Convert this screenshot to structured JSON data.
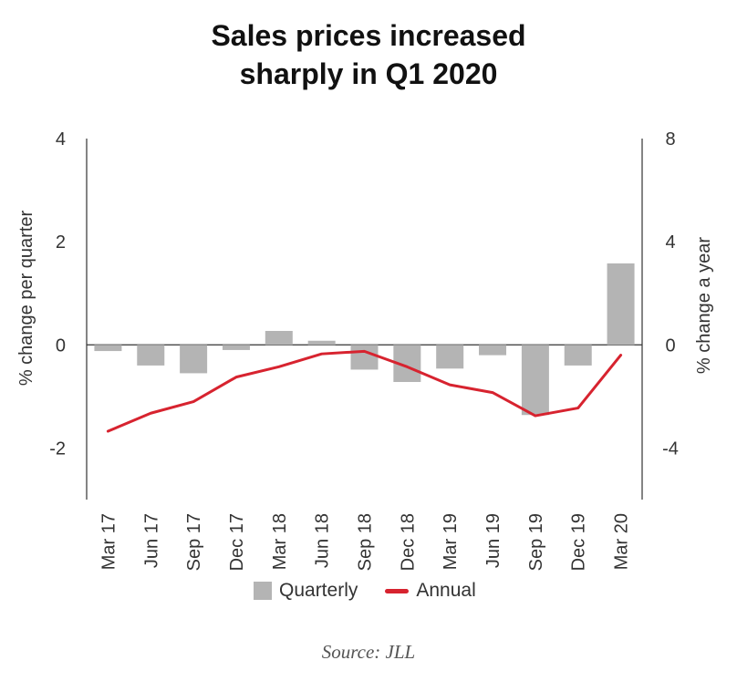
{
  "title_lines": [
    "Sales prices increased",
    "sharply in Q1 2020"
  ],
  "source": "Source: JLL",
  "chart_data": {
    "type": "bar",
    "title": "Sales prices increased sharply in Q1 2020",
    "categories": [
      "Mar 17",
      "Jun 17",
      "Sep 17",
      "Dec 17",
      "Mar 18",
      "Jun 18",
      "Sep 18",
      "Dec 18",
      "Mar 19",
      "Jun 19",
      "Sep 19",
      "Dec 19",
      "Mar 20"
    ],
    "series": [
      {
        "name": "Quarterly",
        "type": "bar",
        "axis": "left",
        "color": "#b4b4b4",
        "values": [
          -0.12,
          -0.4,
          -0.55,
          -0.1,
          0.27,
          0.08,
          -0.48,
          -0.72,
          -0.46,
          -0.2,
          -1.36,
          -0.4,
          1.58
        ]
      },
      {
        "name": "Annual",
        "type": "line",
        "axis": "right",
        "color": "#d7232f",
        "values": [
          -3.35,
          -2.65,
          -2.2,
          -1.25,
          -0.85,
          -0.35,
          -0.25,
          -0.85,
          -1.55,
          -1.85,
          -2.75,
          -2.45,
          -0.4
        ]
      }
    ],
    "ylabel_left": "% change per quarter",
    "ylabel_right": "% change a year",
    "ylim_left": [
      -3,
      4
    ],
    "ylim_right": [
      -6,
      8
    ],
    "yticks_left": [
      -2,
      0,
      2,
      4
    ],
    "yticks_right": [
      -4,
      0,
      4,
      8
    ],
    "ytick_labels_left": [
      "-2",
      "0",
      "2",
      "4"
    ],
    "ytick_labels_right": [
      "-4",
      "0",
      "4",
      "8"
    ],
    "legend": [
      "Quarterly",
      "Annual"
    ],
    "legend_position": "bottom",
    "grid": false
  }
}
